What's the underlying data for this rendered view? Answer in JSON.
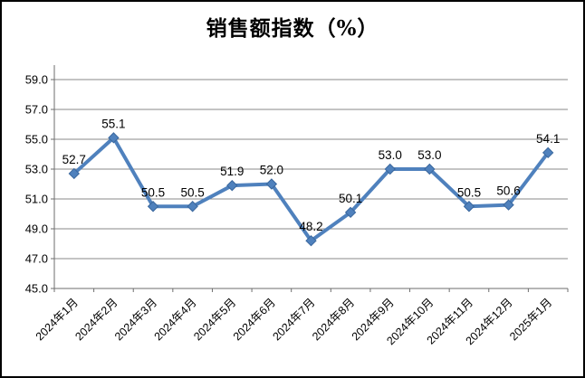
{
  "title": "销售额指数（%）",
  "chart_data": {
    "type": "line",
    "title": "销售额指数（%）",
    "categories": [
      "2024年1月",
      "2024年2月",
      "2024年3月",
      "2024年4月",
      "2024年5月",
      "2024年6月",
      "2024年7月",
      "2024年8月",
      "2024年9月",
      "2024年10月",
      "2024年11月",
      "2024年12月",
      "2025年1月"
    ],
    "values": [
      52.7,
      55.1,
      50.5,
      50.5,
      51.9,
      52.0,
      48.2,
      50.1,
      53.0,
      53.0,
      50.5,
      50.6,
      54.1
    ],
    "xlabel": "",
    "ylabel": "",
    "ylim": [
      45.0,
      59.0
    ],
    "ytick_step": 2.0,
    "yticks": [
      "59.0",
      "57.0",
      "55.0",
      "53.0",
      "51.0",
      "49.0",
      "47.0",
      "45.0"
    ],
    "grid": true,
    "legend_position": "none",
    "marker": "diamond",
    "colors": {
      "series_line": "#4F81BD",
      "marker_fill": "#4F81BD",
      "marker_edge": "#3A679D",
      "gridline": "#898989",
      "axis": "#6e6e6e",
      "text": "#000000",
      "background": "#ffffff",
      "border": "#000000"
    },
    "data_label_decimals": 1
  }
}
